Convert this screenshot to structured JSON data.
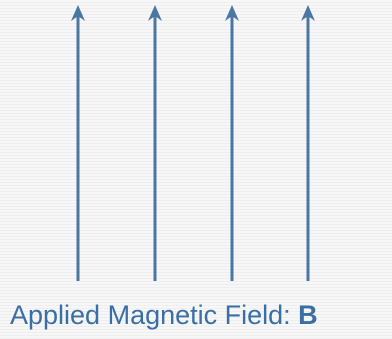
{
  "diagram": {
    "arrow_color": "#4a76a2",
    "arrow_count": 4,
    "arrow_direction": "up",
    "arrows": [
      {
        "name": "field-arrow-1"
      },
      {
        "name": "field-arrow-2"
      },
      {
        "name": "field-arrow-3"
      },
      {
        "name": "field-arrow-4"
      }
    ]
  },
  "caption": {
    "text": "Applied Magnetic Field: ",
    "symbol": "B",
    "color": "#3a6fa5"
  },
  "background": {
    "color": "#f7f7f7",
    "style": "faint horizontal stripes"
  }
}
